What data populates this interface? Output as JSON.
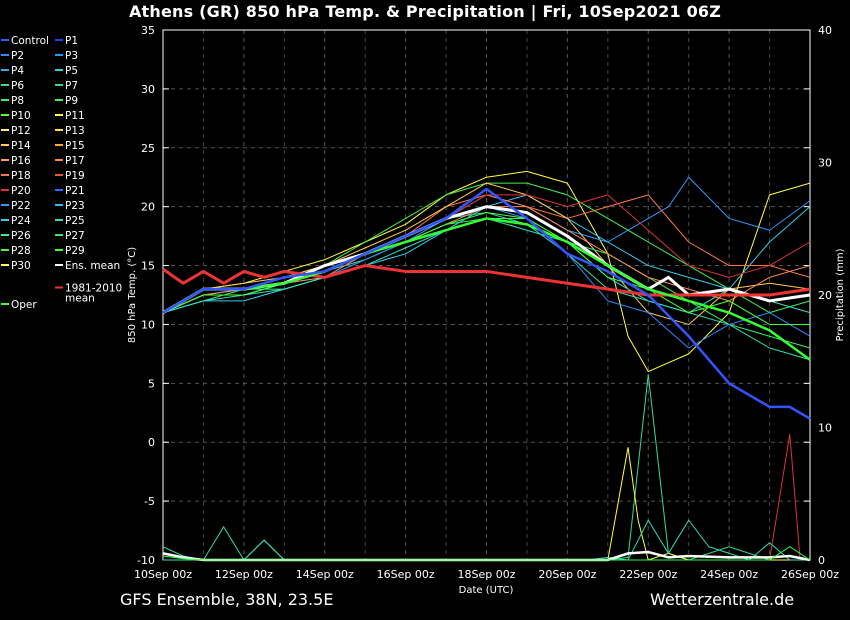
{
  "title": "Athens  (GR)  850 hPa Temp. & Precipitation | Fri, 10Sep2021 06Z",
  "footer": {
    "left": "GFS Ensemble, 38N, 23.5E",
    "right": "Wetterzentrale.de"
  },
  "chart_data": {
    "type": "line",
    "xlabel": "Date (UTC)",
    "ylabel": "850 hPa Temp. (°C)",
    "y2label": "Precipitation (mm)",
    "ylim": [
      -10,
      35
    ],
    "y2lim": [
      0,
      40
    ],
    "xlim_hours": [
      0,
      384
    ],
    "x_ticks": [
      "10Sep 00z",
      "12Sep 00z",
      "14Sep 00z",
      "16Sep 00z",
      "18Sep 00z",
      "20Sep 00z",
      "22Sep 00z",
      "24Sep 00z",
      "26Sep 00z"
    ],
    "y_ticks": [
      -10,
      -5,
      0,
      5,
      10,
      15,
      20,
      25,
      30,
      35
    ],
    "y2_ticks": [
      0,
      10,
      20,
      30,
      40
    ],
    "grid": true,
    "legend_position": "left",
    "legend": [
      {
        "name": "Control",
        "color": "#3355ff"
      },
      {
        "name": "P1",
        "color": "#2244ee"
      },
      {
        "name": "P2",
        "color": "#3388ff"
      },
      {
        "name": "P3",
        "color": "#2299ff"
      },
      {
        "name": "P4",
        "color": "#33aadd"
      },
      {
        "name": "P5",
        "color": "#33ccdd"
      },
      {
        "name": "P6",
        "color": "#33ddaa"
      },
      {
        "name": "P7",
        "color": "#33dd99"
      },
      {
        "name": "P8",
        "color": "#33ee77"
      },
      {
        "name": "P9",
        "color": "#44ee55"
      },
      {
        "name": "P10",
        "color": "#55ff33"
      },
      {
        "name": "P11",
        "color": "#ffff44"
      },
      {
        "name": "P12",
        "color": "#ffee77"
      },
      {
        "name": "P13",
        "color": "#ffdd55"
      },
      {
        "name": "P14",
        "color": "#ffcc55"
      },
      {
        "name": "P15",
        "color": "#ffaa33"
      },
      {
        "name": "P16",
        "color": "#ff9966"
      },
      {
        "name": "P17",
        "color": "#ff8855"
      },
      {
        "name": "P18",
        "color": "#ff7744"
      },
      {
        "name": "P19",
        "color": "#ee5533"
      },
      {
        "name": "P20",
        "color": "#dd3333"
      },
      {
        "name": "P21",
        "color": "#3366ff"
      },
      {
        "name": "P22",
        "color": "#3399ff"
      },
      {
        "name": "P23",
        "color": "#33bbff"
      },
      {
        "name": "P24",
        "color": "#33ccee"
      },
      {
        "name": "P25",
        "color": "#33ddbb"
      },
      {
        "name": "P26",
        "color": "#33ee99"
      },
      {
        "name": "P27",
        "color": "#33ee66"
      },
      {
        "name": "P28",
        "color": "#55ee44"
      },
      {
        "name": "P29",
        "color": "#44ff33"
      },
      {
        "name": "P30",
        "color": "#ffff55"
      },
      {
        "name": "Ens. mean",
        "color": "#ffffff"
      },
      {
        "name": "1981-2010 mean",
        "color": "#ee3333"
      },
      {
        "name": "Oper",
        "color": "#33ff33"
      }
    ],
    "series": [
      {
        "name": "Ens. mean",
        "color": "#ffffff",
        "x": [
          0,
          24,
          48,
          72,
          96,
          120,
          144,
          168,
          192,
          216,
          240,
          264,
          288,
          300,
          312,
          336,
          360,
          384
        ],
        "y": [
          11,
          13,
          13,
          13.5,
          15,
          16,
          17.5,
          19,
          20,
          19.5,
          17.5,
          15,
          13,
          14,
          12.5,
          13,
          12,
          12.5
        ]
      },
      {
        "name": "1981-2010 mean",
        "color": "#ee3333",
        "x": [
          0,
          12,
          24,
          36,
          48,
          60,
          72,
          96,
          120,
          144,
          168,
          192,
          216,
          240,
          264,
          288,
          312,
          336,
          360,
          384
        ],
        "y": [
          14.7,
          13.5,
          14.5,
          13.5,
          14.5,
          14,
          14.5,
          14,
          15,
          14.5,
          14.5,
          14.5,
          14,
          13.5,
          13,
          12.5,
          12.5,
          12.5,
          12.5,
          13
        ]
      },
      {
        "name": "Oper",
        "color": "#33ff33",
        "x": [
          0,
          24,
          48,
          72,
          96,
          120,
          144,
          168,
          192,
          216,
          240,
          264,
          288,
          312,
          336,
          360,
          384
        ],
        "y": [
          11,
          13,
          13,
          13.5,
          14.5,
          16,
          17,
          18,
          19,
          18.5,
          17,
          15,
          13,
          12,
          11,
          9.5,
          7
        ]
      },
      {
        "name": "Control",
        "color": "#3355ff",
        "x": [
          0,
          24,
          48,
          72,
          96,
          120,
          144,
          168,
          192,
          216,
          240,
          264,
          288,
          312,
          336,
          360,
          372,
          384
        ],
        "y": [
          11,
          13,
          13,
          14,
          14.5,
          16,
          17.5,
          19,
          21.5,
          19,
          16,
          14.5,
          12.5,
          9,
          5,
          3,
          3,
          2
        ]
      },
      {
        "name": "P11",
        "color": "#ffff44",
        "x": [
          0,
          24,
          48,
          72,
          96,
          120,
          144,
          168,
          192,
          216,
          240,
          264,
          276,
          288,
          312,
          336,
          360,
          384
        ],
        "y": [
          11,
          13,
          13.5,
          14.5,
          15.5,
          17,
          18.5,
          21,
          22.5,
          23,
          22,
          16,
          9,
          6,
          7.5,
          11,
          21,
          22
        ]
      },
      {
        "name": "P9",
        "color": "#44ee55",
        "x": [
          0,
          24,
          48,
          72,
          96,
          120,
          144,
          168,
          192,
          216,
          240,
          264,
          288,
          312,
          336,
          360,
          384
        ],
        "y": [
          11,
          12.5,
          13,
          14,
          15,
          17,
          19,
          21,
          22,
          22,
          21,
          19,
          17,
          15,
          13,
          11,
          12
        ]
      },
      {
        "name": "P22",
        "color": "#3399ff",
        "x": [
          0,
          24,
          48,
          72,
          96,
          120,
          144,
          168,
          192,
          216,
          240,
          264,
          288,
          300,
          312,
          336,
          360,
          384
        ],
        "y": [
          11,
          12.5,
          12.5,
          13.5,
          15,
          16,
          17.5,
          19,
          21,
          20,
          18,
          17,
          19,
          20,
          22.5,
          19,
          18,
          20.5
        ]
      },
      {
        "name": "P24",
        "color": "#33ccee",
        "x": [
          0,
          24,
          48,
          72,
          96,
          120,
          144,
          168,
          192,
          216,
          240,
          264,
          288,
          312,
          336,
          360,
          384
        ],
        "y": [
          11,
          12,
          12,
          13,
          14,
          15,
          16,
          18,
          20,
          21,
          19,
          17,
          15,
          14,
          13,
          17,
          20
        ]
      },
      {
        "name": "P18",
        "color": "#ff7744",
        "x": [
          0,
          24,
          48,
          72,
          96,
          120,
          144,
          168,
          192,
          216,
          240,
          264,
          288,
          312,
          336,
          360,
          384
        ],
        "y": [
          11,
          12.5,
          13,
          14,
          15,
          16,
          17.5,
          20,
          21,
          20,
          19,
          20,
          21,
          17,
          15,
          15,
          14
        ]
      },
      {
        "name": "P14",
        "color": "#ffcc55",
        "x": [
          0,
          24,
          48,
          72,
          96,
          120,
          144,
          168,
          192,
          216,
          240,
          264,
          288,
          312,
          336,
          360,
          384
        ],
        "y": [
          11,
          13,
          13.5,
          14,
          15,
          16.5,
          18,
          20,
          22,
          21,
          19,
          15,
          11,
          10,
          13,
          13.5,
          13
        ]
      },
      {
        "name": "P6",
        "color": "#33ddaa",
        "x": [
          0,
          24,
          48,
          72,
          96,
          120,
          144,
          168,
          192,
          216,
          240,
          264,
          288,
          312,
          336,
          360,
          384
        ],
        "y": [
          11,
          12.5,
          12.5,
          13.5,
          14.5,
          15.5,
          17,
          19,
          19.5,
          18.5,
          16,
          13,
          12,
          11,
          10,
          8,
          7
        ]
      },
      {
        "name": "P27",
        "color": "#33ee66",
        "x": [
          0,
          24,
          48,
          72,
          96,
          120,
          144,
          168,
          192,
          216,
          240,
          264,
          288,
          312,
          336,
          360,
          384
        ],
        "y": [
          11,
          12,
          13,
          13,
          14,
          15.5,
          17,
          18.5,
          19,
          19,
          17,
          16,
          14,
          12,
          10,
          9,
          8
        ]
      },
      {
        "name": "P2",
        "color": "#3388ff",
        "x": [
          0,
          24,
          48,
          72,
          96,
          120,
          144,
          168,
          192,
          216,
          240,
          264,
          288,
          312,
          336,
          360,
          384
        ],
        "y": [
          11,
          12.5,
          13,
          13.5,
          14,
          15.5,
          17,
          19,
          20,
          19,
          16,
          12,
          11,
          8,
          10,
          11,
          9
        ]
      },
      {
        "name": "P17",
        "color": "#ff8855",
        "x": [
          0,
          24,
          48,
          72,
          96,
          120,
          144,
          168,
          192,
          216,
          240,
          264,
          288,
          312,
          336,
          360,
          384
        ],
        "y": [
          11,
          12.5,
          13,
          13.5,
          14,
          16,
          17,
          18.5,
          20,
          20,
          18,
          16,
          14,
          13,
          12,
          14,
          15
        ]
      },
      {
        "name": "P20",
        "color": "#dd3333",
        "x": [
          0,
          24,
          48,
          72,
          96,
          120,
          144,
          168,
          192,
          216,
          240,
          264,
          288,
          312,
          336,
          360,
          384
        ],
        "y": [
          11,
          13,
          13,
          13.5,
          14.5,
          16,
          17.5,
          19,
          21,
          21,
          20,
          21,
          18,
          15,
          14,
          15,
          17
        ]
      },
      {
        "name": "P25",
        "color": "#33ddbb",
        "x": [
          0,
          24,
          48,
          72,
          96,
          120,
          144,
          168,
          192,
          216,
          240,
          264,
          288,
          312,
          336,
          360,
          384
        ],
        "y": [
          11,
          12,
          12.5,
          13,
          14,
          15,
          16.5,
          18,
          19,
          18,
          17,
          14,
          12,
          11,
          13,
          12,
          11
        ]
      },
      {
        "name": "P29",
        "color": "#44ff33",
        "x": [
          0,
          24,
          48,
          72,
          96,
          120,
          144,
          168,
          192,
          216,
          240,
          264,
          288,
          312,
          336,
          360,
          384
        ],
        "y": [
          11,
          12.5,
          12.5,
          13.5,
          14.5,
          16,
          17,
          18.5,
          19.5,
          19,
          17,
          14,
          13,
          11,
          12,
          10,
          10
        ]
      }
    ],
    "precip_series": [
      {
        "name": "P7",
        "color": "#33dd99",
        "x": [
          0,
          12,
          24,
          36,
          48,
          60,
          72,
          264,
          276,
          288,
          300,
          312,
          336,
          360,
          384
        ],
        "y": [
          1,
          0.3,
          0,
          2.5,
          0,
          1.5,
          0,
          0,
          0.2,
          14,
          0.5,
          0,
          1,
          0,
          0
        ]
      },
      {
        "name": "P11",
        "color": "#ffff44",
        "x": [
          0,
          264,
          276,
          282,
          288,
          300,
          312,
          384
        ],
        "y": [
          0,
          0,
          8.5,
          3,
          0,
          0.5,
          0,
          0
        ]
      },
      {
        "name": "P20",
        "color": "#dd3333",
        "x": [
          0,
          360,
          372,
          378,
          384
        ],
        "y": [
          0,
          0,
          9.5,
          0.2,
          0
        ]
      },
      {
        "name": "P25",
        "color": "#33ddbb",
        "x": [
          0,
          48,
          60,
          72,
          252,
          264,
          276,
          288,
          300,
          312,
          324,
          336,
          348,
          360,
          372,
          384
        ],
        "y": [
          0,
          0,
          1.5,
          0,
          0,
          0.2,
          0,
          3,
          0.5,
          3,
          1,
          0.5,
          0,
          1.3,
          0,
          0
        ]
      },
      {
        "name": "Ens. mean",
        "color": "#ffffff",
        "x": [
          0,
          12,
          24,
          264,
          276,
          288,
          300,
          312,
          336,
          360,
          372,
          384
        ],
        "y": [
          0.5,
          0.2,
          0,
          0,
          0.5,
          0.6,
          0.2,
          0.3,
          0.2,
          0.2,
          0.3,
          0
        ]
      },
      {
        "name": "Oper",
        "color": "#33ff33",
        "x": [
          0,
          12,
          24,
          360,
          372,
          384
        ],
        "y": [
          0.3,
          0.1,
          0,
          0,
          1,
          0
        ]
      }
    ]
  }
}
